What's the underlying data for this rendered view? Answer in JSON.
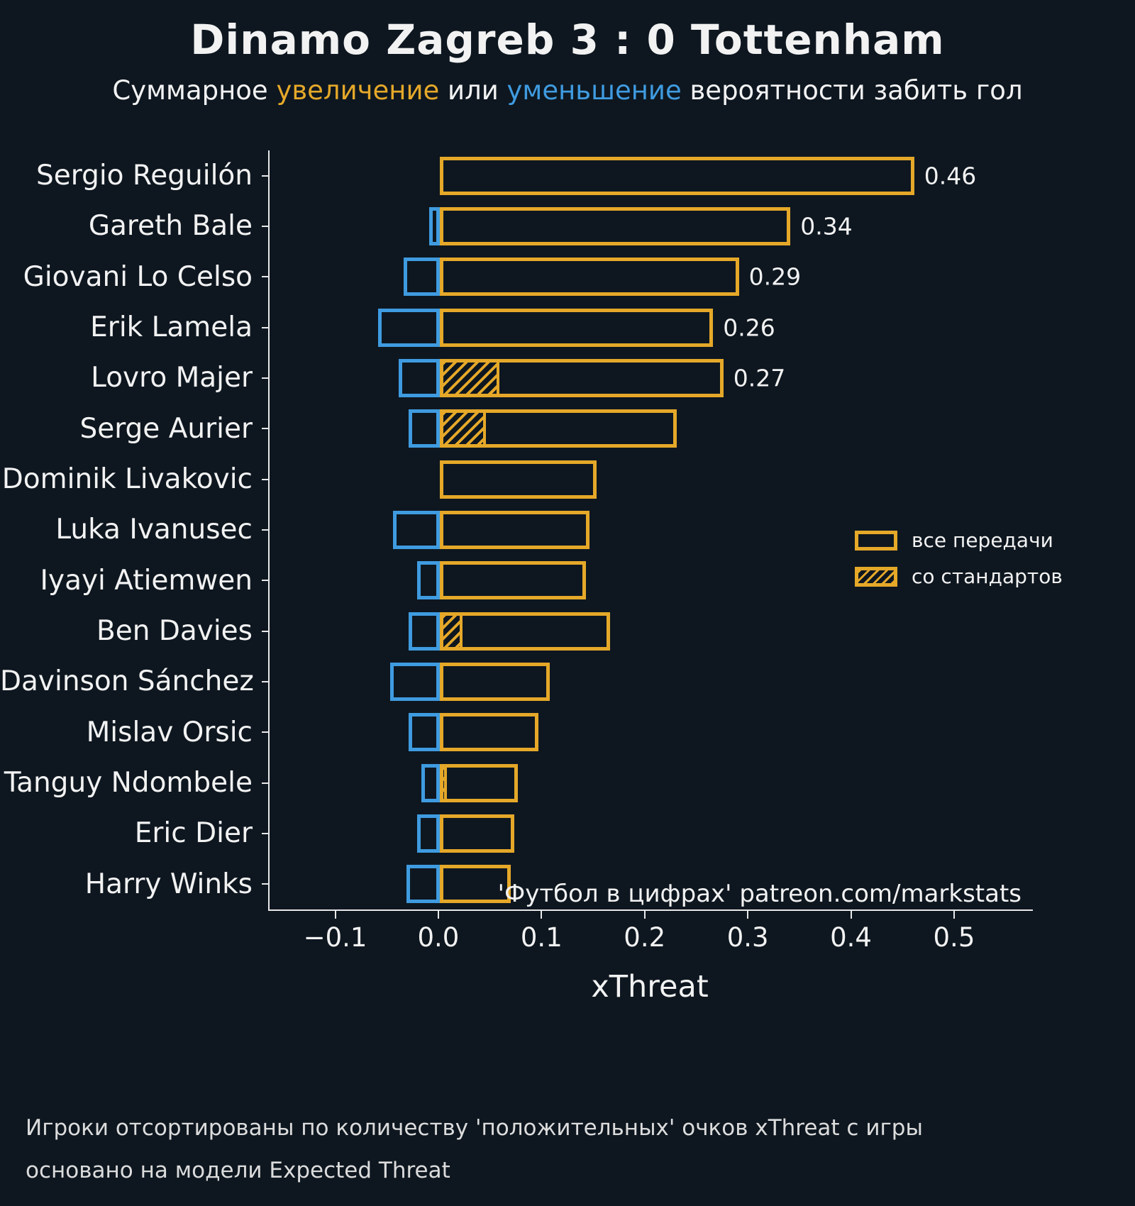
{
  "header": {
    "title": "Dinamo Zagreb 3 : 0 Tottenham",
    "subtitle": {
      "pre": "Суммарное ",
      "increase": "увеличение",
      "mid": " или ",
      "decrease": "уменьшение",
      "post": " вероятности забить гол"
    }
  },
  "colors": {
    "background": "#0e1720",
    "gold": "#e5a829",
    "blue": "#3f9be0",
    "text": "#f2f2f2",
    "axis": "#e8e8e8"
  },
  "legend": {
    "all_passes": "все передачи",
    "set_pieces": "со стандартов"
  },
  "annotation": "'Футбол в цифрах' patreon.com/markstats",
  "footer": {
    "line1": "Игроки отсортированы по количеству 'положительных' очков xThreat с игры",
    "line2": "основано на модели Expected Threat"
  },
  "chart_data": {
    "type": "bar",
    "orientation": "horizontal",
    "title": "Dinamo Zagreb 3 : 0 Tottenham",
    "xlabel": "xThreat",
    "x_range": [
      -0.165,
      0.575
    ],
    "x_ticks": [
      {
        "value": -0.1,
        "label": "−0.1"
      },
      {
        "value": 0.0,
        "label": "0.0"
      },
      {
        "value": 0.1,
        "label": "0.1"
      },
      {
        "value": 0.2,
        "label": "0.2"
      },
      {
        "value": 0.3,
        "label": "0.3"
      },
      {
        "value": 0.4,
        "label": "0.4"
      },
      {
        "value": 0.5,
        "label": "0.5"
      }
    ],
    "legend_position": "center right",
    "players": [
      {
        "name": "Sergio Reguilón",
        "positive": 0.46,
        "negative": 0,
        "set_piece": 0,
        "label": "0.46"
      },
      {
        "name": "Gareth Bale",
        "positive": 0.34,
        "negative": -0.01,
        "set_piece": 0,
        "label": "0.34"
      },
      {
        "name": "Giovani Lo Celso",
        "positive": 0.29,
        "negative": -0.035,
        "set_piece": 0,
        "label": "0.29"
      },
      {
        "name": "Erik Lamela",
        "positive": 0.265,
        "negative": -0.06,
        "set_piece": 0,
        "label": "0.26"
      },
      {
        "name": "Lovro Majer",
        "positive": 0.275,
        "negative": -0.04,
        "set_piece": 0.058,
        "label": "0.27"
      },
      {
        "name": "Serge Aurier",
        "positive": 0.23,
        "negative": -0.03,
        "set_piece": 0.045,
        "label": null
      },
      {
        "name": "Dominik Livakovic",
        "positive": 0.152,
        "negative": 0,
        "set_piece": 0,
        "label": null
      },
      {
        "name": "Luka Ivanusec",
        "positive": 0.145,
        "negative": -0.045,
        "set_piece": 0,
        "label": null
      },
      {
        "name": "Iyayi Atiemwen",
        "positive": 0.142,
        "negative": -0.022,
        "set_piece": 0,
        "label": null
      },
      {
        "name": "Ben Davies",
        "positive": 0.165,
        "negative": -0.03,
        "set_piece": 0.022,
        "label": null
      },
      {
        "name": "Davinson Sánchez",
        "positive": 0.107,
        "negative": -0.048,
        "set_piece": 0,
        "label": null
      },
      {
        "name": "Mislav Orsic",
        "positive": 0.096,
        "negative": -0.03,
        "set_piece": 0,
        "label": null
      },
      {
        "name": "Tanguy Ndombele",
        "positive": 0.076,
        "negative": -0.018,
        "set_piece": 0.007,
        "label": null
      },
      {
        "name": "Eric Dier",
        "positive": 0.072,
        "negative": -0.022,
        "set_piece": 0,
        "label": null
      },
      {
        "name": "Harry Winks",
        "positive": 0.069,
        "negative": -0.032,
        "set_piece": 0,
        "label": null
      }
    ]
  }
}
